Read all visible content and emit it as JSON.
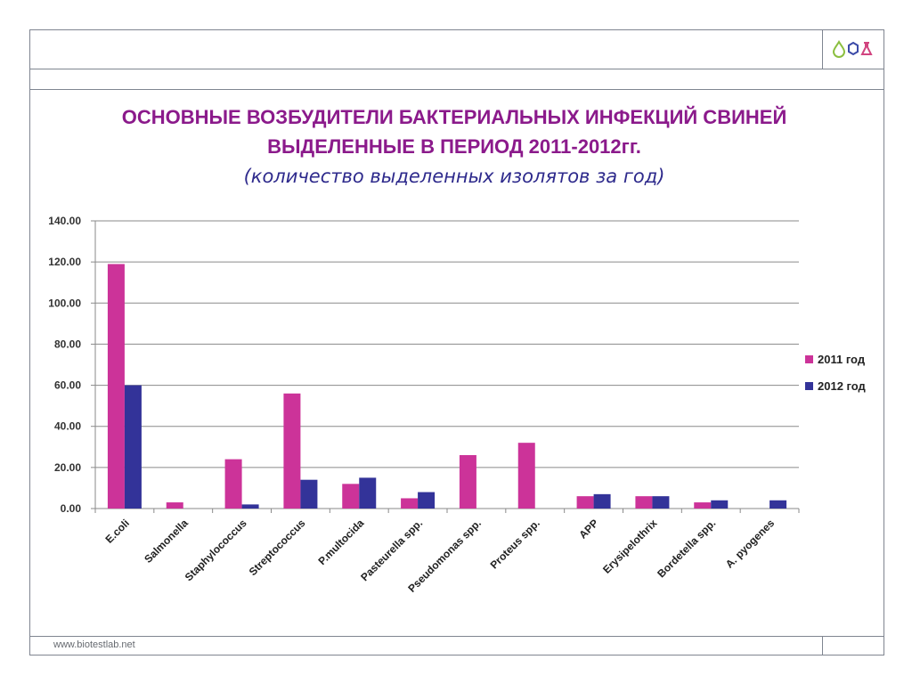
{
  "slide": {
    "title_line1": "ОСНОВНЫЕ ВОЗБУДИТЕЛИ БАКТЕРИАЛЬНЫХ ИНФЕКЦИЙ СВИНЕЙ",
    "title_line2": "ВЫДЕЛЕННЫЕ  В ПЕРИОД 2011-2012гг.",
    "subtitle": "(количество выделенных изолятов за год)",
    "footer_url": "www.biotestlab.net"
  },
  "colors": {
    "title": "#8b1a8b",
    "subtitle": "#2e2a8c",
    "series_2011": "#cc3399",
    "series_2012": "#333399",
    "logo_green": "#8bbf3f",
    "logo_blue": "#3b4aa8",
    "logo_pink": "#d1447f"
  },
  "chart_data": {
    "type": "bar",
    "categories": [
      "E.coli",
      "Salmonella",
      "Staphylococcus",
      "Streptococcus",
      "P.multocida",
      "Pasteurella spp.",
      "Pseudomonas spp.",
      "Proteus spp.",
      "APP",
      "Erysipelothrix",
      "Bordetella spp.",
      "A. pyogenes"
    ],
    "series": [
      {
        "name": "2011 год",
        "values": [
          119,
          3,
          24,
          56,
          12,
          5,
          26,
          32,
          6,
          6,
          3,
          0
        ]
      },
      {
        "name": "2012 год",
        "values": [
          60,
          0,
          2,
          14,
          15,
          8,
          0,
          0,
          7,
          6,
          4,
          4
        ]
      }
    ],
    "y_ticks": [
      "0.00",
      "20.00",
      "40.00",
      "60.00",
      "80.00",
      "100.00",
      "120.00",
      "140.00"
    ],
    "ylim": [
      0,
      140
    ],
    "grid": true,
    "legend_position": "right"
  }
}
